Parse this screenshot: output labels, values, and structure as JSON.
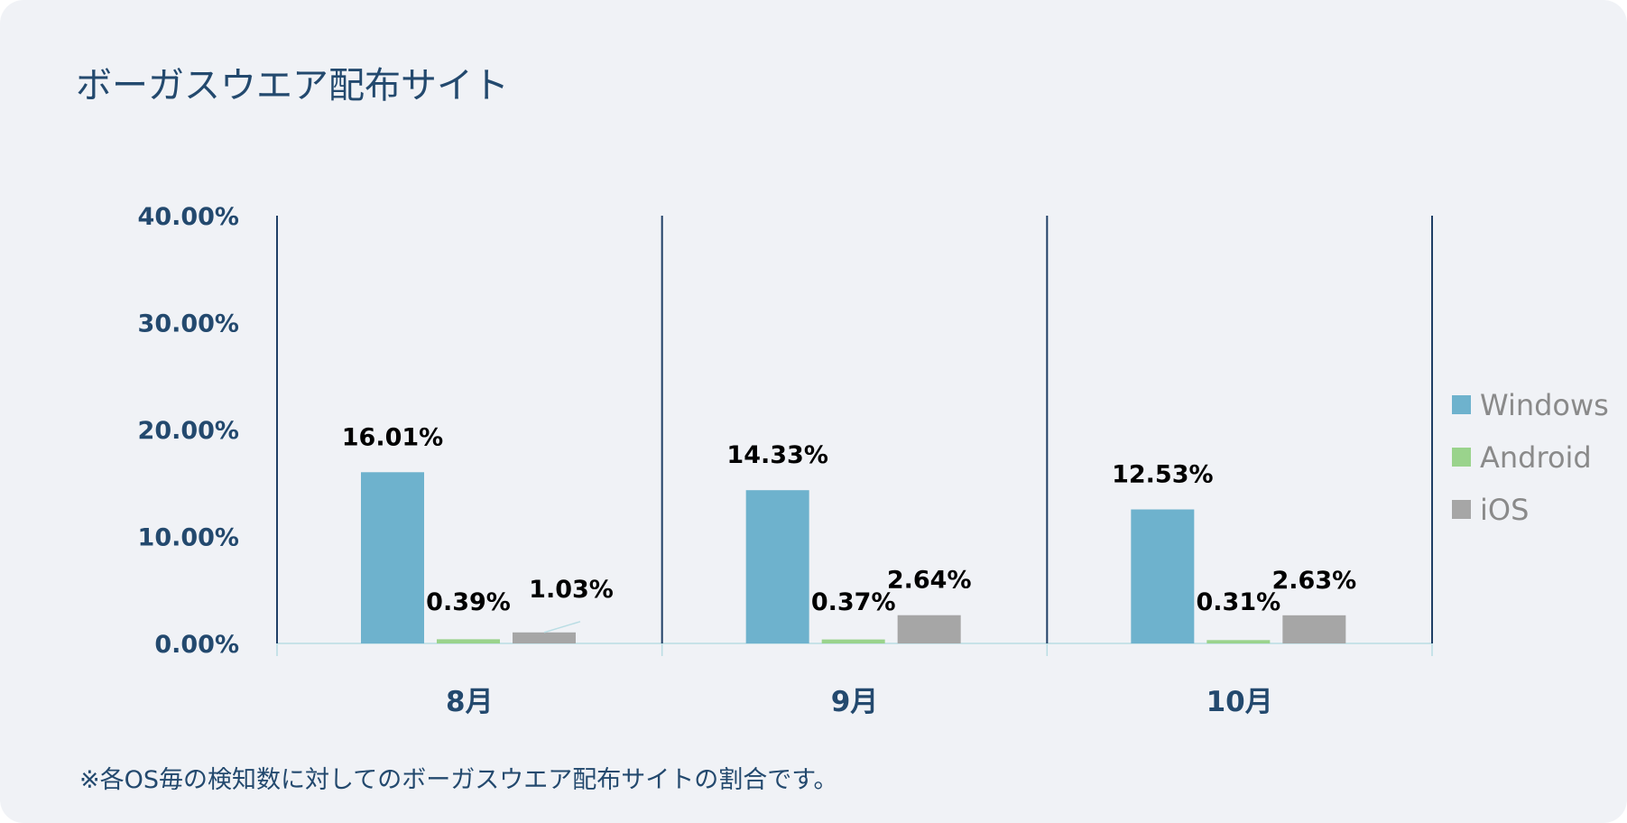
{
  "chart_data": {
    "type": "bar",
    "title": "ボーガスウエア配布サイト",
    "note": "※各OS毎の検知数に対してのボーガスウエア配布サイトの割合です。",
    "categories": [
      "8月",
      "9月",
      "10月"
    ],
    "series": [
      {
        "name": "Windows",
        "color": "#6eb2cd",
        "values": [
          16.01,
          14.33,
          12.53
        ],
        "labels": [
          "16.01%",
          "14.33%",
          "12.53%"
        ]
      },
      {
        "name": "Android",
        "color": "#9ad38c",
        "values": [
          0.39,
          0.37,
          0.31
        ],
        "labels": [
          "0.39%",
          "0.37%",
          "0.31%"
        ]
      },
      {
        "name": "iOS",
        "color": "#a6a6a6",
        "values": [
          1.03,
          2.64,
          2.63
        ],
        "labels": [
          "1.03%",
          "2.64%",
          "2.63%"
        ]
      }
    ],
    "ylim": [
      0,
      40
    ],
    "yticks": [
      0,
      10,
      20,
      30,
      40
    ],
    "ytick_labels": [
      "0.00%",
      "10.00%",
      "20.00%",
      "30.00%",
      "40.00%"
    ],
    "xlabel": "",
    "ylabel": "",
    "legend": "right",
    "grid": false
  }
}
